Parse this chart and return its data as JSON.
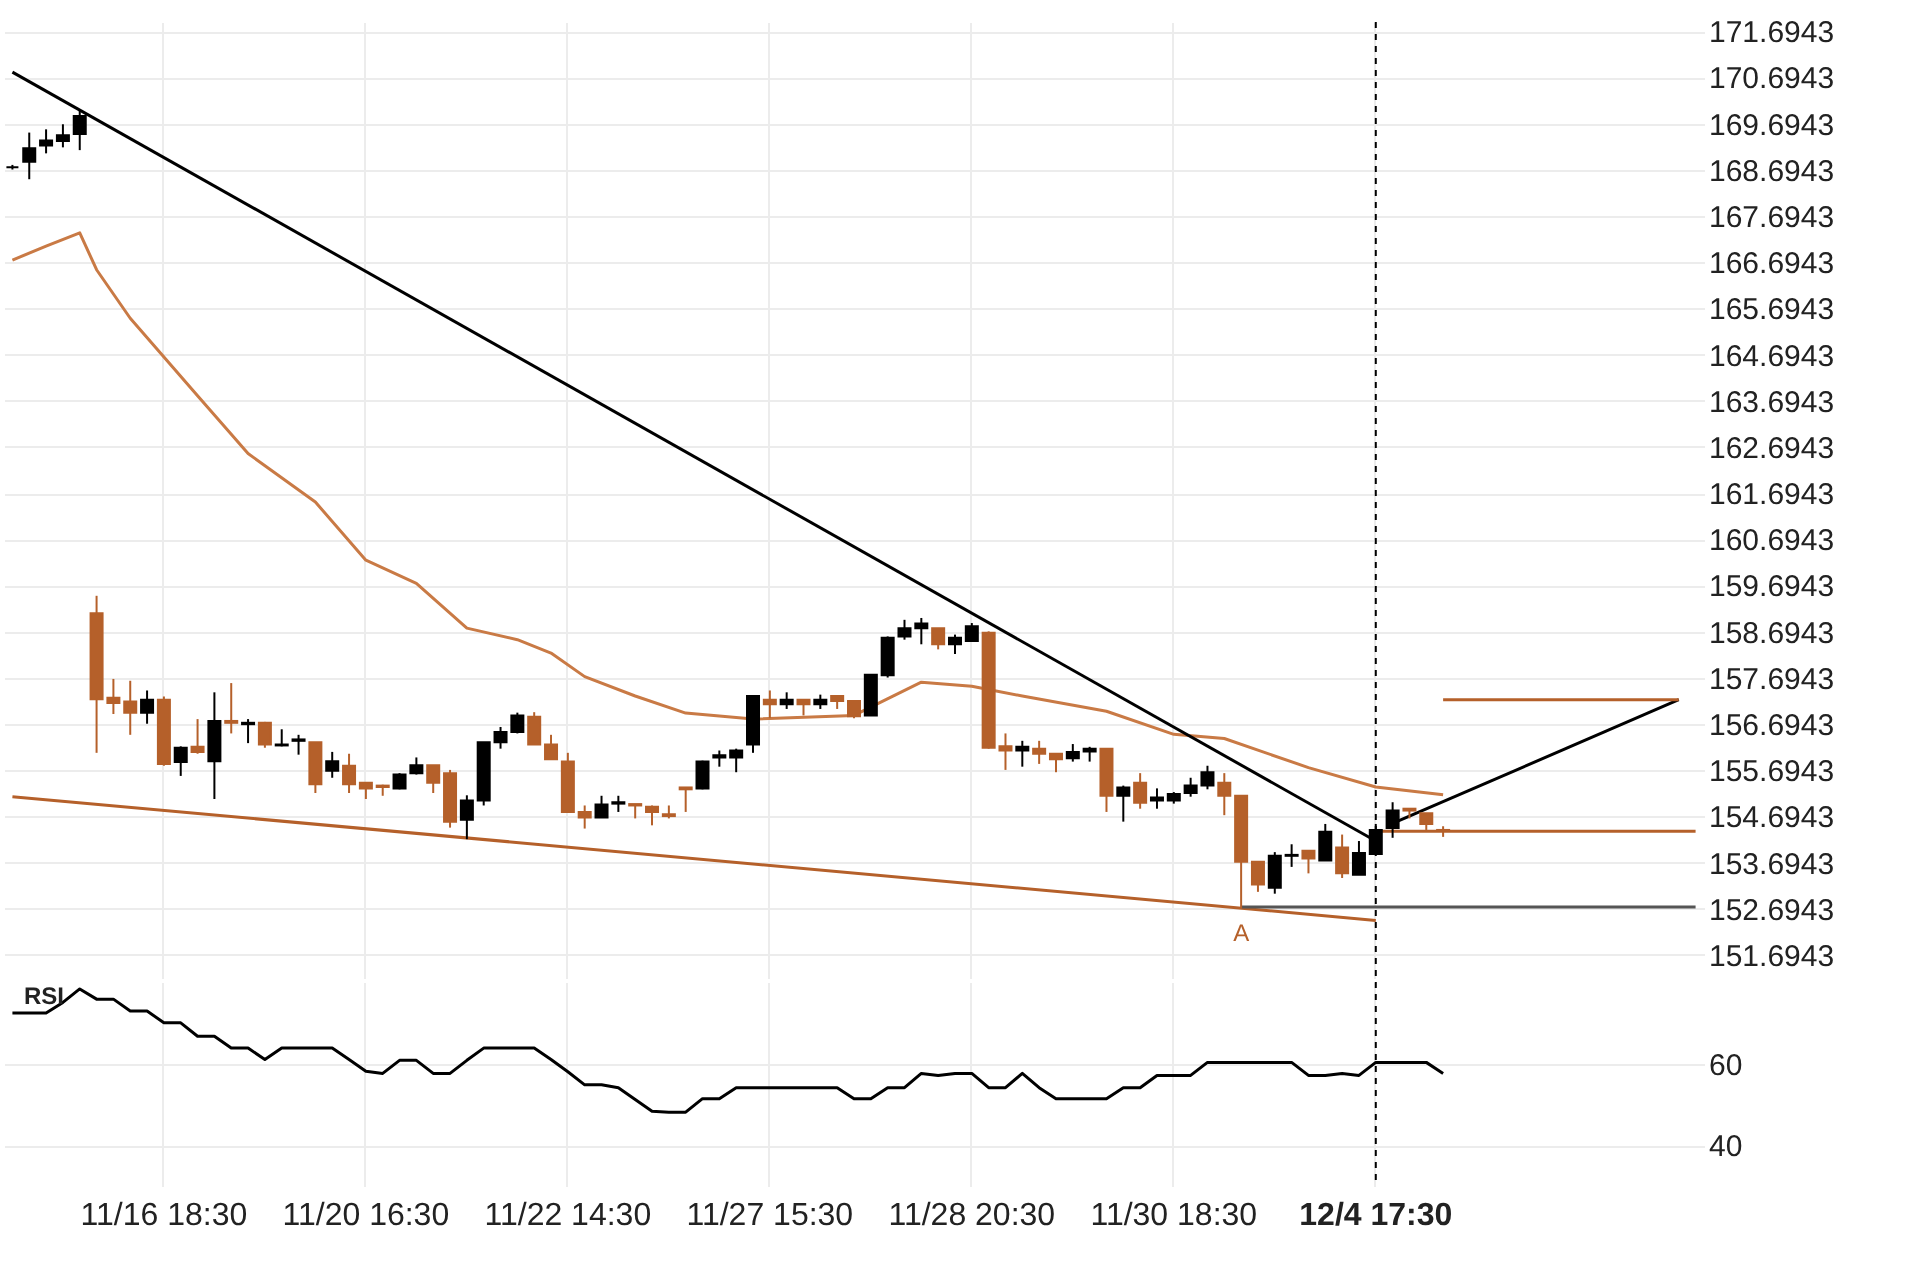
{
  "chart_data": [
    {
      "type": "candlestick",
      "categories": [
        null,
        null,
        null,
        null,
        null,
        null,
        null,
        null,
        null,
        "11/16 18:30",
        null,
        null,
        null,
        null,
        null,
        null,
        null,
        null,
        null,
        null,
        null,
        "11/20 16:30",
        null,
        null,
        null,
        null,
        null,
        null,
        null,
        null,
        null,
        null,
        null,
        "11/22 14:30",
        null,
        null,
        null,
        null,
        null,
        null,
        null,
        null,
        null,
        null,
        null,
        "11/27 15:30",
        null,
        null,
        null,
        null,
        null,
        null,
        null,
        null,
        null,
        null,
        null,
        "11/28 20:30",
        null,
        null,
        null,
        null,
        null,
        null,
        null,
        null,
        null,
        null,
        null,
        "11/30 18:30",
        null,
        null,
        null,
        null,
        null,
        null,
        null,
        null,
        null,
        null,
        null,
        "12/4 17:30",
        null,
        null,
        null,
        null,
        null,
        null,
        null,
        null,
        null,
        null,
        null,
        null,
        null,
        null,
        null,
        null,
        null,
        null,
        null
      ],
      "ohlc": [
        [
          168.75,
          168.8,
          168.7,
          168.75
        ],
        [
          168.87,
          169.5,
          168.49,
          169.16
        ],
        [
          169.22,
          169.57,
          169.05,
          169.33
        ],
        [
          169.32,
          169.68,
          169.18,
          169.44
        ],
        [
          169.47,
          169.99,
          169.12,
          169.86
        ],
        [
          159.09,
          159.47,
          156.07,
          157.23
        ],
        [
          157.26,
          157.67,
          156.91,
          157.15
        ],
        [
          157.18,
          157.63,
          156.46,
          156.94
        ],
        [
          156.94,
          157.42,
          156.7,
          157.22
        ],
        [
          157.22,
          157.29,
          155.79,
          155.83
        ],
        [
          155.87,
          156.21,
          155.57,
          156.18
        ],
        [
          156.2,
          156.8,
          156.05,
          156.09
        ],
        [
          155.89,
          157.38,
          155.07,
          156.76
        ],
        [
          156.76,
          157.58,
          156.49,
          156.72
        ],
        [
          156.69,
          156.8,
          156.28,
          156.72
        ],
        [
          156.72,
          156.74,
          156.18,
          156.25
        ],
        [
          156.23,
          156.58,
          156.21,
          156.25
        ],
        [
          156.33,
          156.46,
          156.03,
          156.36
        ],
        [
          156.3,
          156.3,
          155.2,
          155.39
        ],
        [
          155.68,
          156.09,
          155.53,
          155.89
        ],
        [
          155.79,
          156.05,
          155.2,
          155.39
        ],
        [
          155.42,
          155.42,
          155.07,
          155.3
        ],
        [
          155.36,
          155.38,
          155.14,
          155.33
        ],
        [
          155.3,
          155.63,
          155.28,
          155.6
        ],
        [
          155.63,
          155.97,
          155.6,
          155.8
        ],
        [
          155.8,
          155.8,
          155.2,
          155.42
        ],
        [
          155.63,
          155.7,
          154.45,
          154.58
        ],
        [
          154.62,
          155.15,
          154.2,
          155.04
        ],
        [
          155.04,
          156.3,
          154.93,
          156.3
        ],
        [
          156.3,
          156.63,
          156.16,
          156.52
        ],
        [
          156.52,
          156.94,
          156.49,
          156.88
        ],
        [
          156.85,
          156.95,
          156.25,
          156.25
        ],
        [
          156.25,
          156.46,
          155.93,
          155.93
        ],
        [
          155.88,
          156.07,
          154.79,
          154.79
        ],
        [
          154.79,
          154.93,
          154.43,
          154.67
        ],
        [
          154.67,
          155.14,
          154.67,
          154.95
        ],
        [
          154.97,
          155.14,
          154.79,
          155.0
        ],
        [
          154.96,
          154.96,
          154.65,
          154.93
        ],
        [
          154.9,
          154.93,
          154.5,
          154.79
        ],
        [
          154.74,
          154.93,
          154.65,
          154.7
        ],
        [
          155.32,
          155.32,
          154.79,
          155.28
        ],
        [
          155.3,
          155.9,
          155.28,
          155.88
        ],
        [
          155.97,
          156.12,
          155.77,
          156.02
        ],
        [
          155.97,
          156.16,
          155.65,
          156.12
        ],
        [
          156.25,
          157.3,
          156.07,
          157.3
        ],
        [
          157.22,
          157.42,
          156.82,
          157.12
        ],
        [
          157.12,
          157.38,
          157.02,
          157.22
        ],
        [
          157.22,
          157.22,
          156.88,
          157.12
        ],
        [
          157.12,
          157.33,
          157.02,
          157.22
        ],
        [
          157.3,
          157.3,
          157.02,
          157.19
        ],
        [
          157.19,
          157.19,
          156.82,
          156.86
        ],
        [
          156.88,
          157.76,
          156.88,
          157.76
        ],
        [
          157.75,
          158.59,
          157.7,
          158.56
        ],
        [
          158.59,
          158.95,
          158.52,
          158.77
        ],
        [
          158.77,
          158.99,
          158.42,
          158.87
        ],
        [
          158.77,
          158.77,
          158.31,
          158.42
        ],
        [
          158.42,
          158.63,
          158.21,
          158.56
        ],
        [
          158.49,
          158.88,
          158.49,
          158.81
        ],
        [
          158.67,
          158.7,
          156.16,
          156.18
        ],
        [
          156.21,
          156.49,
          155.7,
          156.12
        ],
        [
          156.12,
          156.33,
          155.77,
          156.2
        ],
        [
          156.16,
          156.33,
          155.83,
          156.05
        ],
        [
          156.05,
          156.05,
          155.65,
          155.93
        ],
        [
          155.95,
          156.26,
          155.88,
          156.09
        ],
        [
          156.1,
          156.2,
          155.88,
          156.16
        ],
        [
          156.16,
          156.16,
          154.79,
          155.14
        ],
        [
          155.14,
          155.36,
          154.58,
          155.32
        ],
        [
          155.42,
          155.63,
          154.86,
          154.99
        ],
        [
          155.04,
          155.3,
          154.86,
          155.1
        ],
        [
          155.04,
          155.22,
          154.97,
          155.18
        ],
        [
          155.2,
          155.53,
          155.12,
          155.36
        ],
        [
          155.36,
          155.79,
          155.28,
          155.65
        ],
        [
          155.42,
          155.63,
          154.72,
          155.14
        ],
        [
          155.14,
          155.14,
          152.69,
          153.71
        ],
        [
          153.71,
          153.71,
          153.06,
          153.22
        ],
        [
          153.15,
          153.92,
          153.02,
          153.84
        ],
        [
          153.84,
          154.09,
          153.6,
          153.86
        ],
        [
          153.95,
          153.95,
          153.46,
          153.78
        ],
        [
          153.74,
          154.53,
          153.74,
          154.36
        ],
        [
          154.02,
          154.3,
          153.36,
          153.46
        ],
        [
          153.43,
          154.16,
          153.43,
          153.9
        ],
        [
          153.88,
          154.53,
          153.88,
          154.4
        ],
        [
          154.44,
          155.0,
          154.23,
          154.82
        ],
        [
          154.86,
          154.86,
          154.65,
          154.82
        ],
        [
          154.76,
          154.76,
          154.4,
          154.53
        ],
        [
          154.4,
          154.48,
          154.25,
          154.38
        ],
        null,
        null,
        null,
        null,
        null,
        null,
        null,
        null,
        null,
        null,
        null,
        null,
        null,
        null,
        null
      ],
      "colors": [
        "#000000",
        "#000000",
        "#000000",
        "#000000",
        "#000000",
        "#b5602a",
        "#b5602a",
        "#b5602a",
        "#000000",
        "#b5602a",
        "#000000",
        "#b5602a",
        "#000000",
        "#b5602a",
        "#000000",
        "#b5602a",
        "#000000",
        "#000000",
        "#b5602a",
        "#000000",
        "#b5602a",
        "#b5602a",
        "#b5602a",
        "#000000",
        "#000000",
        "#b5602a",
        "#b5602a",
        "#000000",
        "#000000",
        "#000000",
        "#000000",
        "#b5602a",
        "#b5602a",
        "#b5602a",
        "#b5602a",
        "#000000",
        "#000000",
        "#b5602a",
        "#b5602a",
        "#b5602a",
        "#b5602a",
        "#000000",
        "#000000",
        "#000000",
        "#000000",
        "#b5602a",
        "#000000",
        "#b5602a",
        "#000000",
        "#b5602a",
        "#b5602a",
        "#000000",
        "#000000",
        "#000000",
        "#000000",
        "#b5602a",
        "#000000",
        "#000000",
        "#b5602a",
        "#b5602a",
        "#000000",
        "#b5602a",
        "#b5602a",
        "#000000",
        "#000000",
        "#b5602a",
        "#000000",
        "#b5602a",
        "#000000",
        "#000000",
        "#000000",
        "#000000",
        "#b5602a",
        "#b5602a",
        "#b5602a",
        "#000000",
        "#000000",
        "#b5602a",
        "#000000",
        "#b5602a",
        "#000000",
        "#000000",
        "#000000",
        "#b5602a",
        "#b5602a",
        "#b5602a",
        null,
        null,
        null,
        null,
        null,
        null,
        null,
        null,
        null,
        null,
        null,
        null,
        null,
        null,
        null
      ],
      "series": [
        {
          "type": "line",
          "color": "#c97a45",
          "values": [
            166.74,
            null,
            167.04,
            null,
            167.33,
            166.53,
            null,
            165.48,
            null,
            null,
            null,
            163.8,
            null,
            null,
            162.55,
            null,
            null,
            null,
            161.5,
            null,
            null,
            160.24,
            null,
            null,
            159.74,
            null,
            null,
            158.77,
            null,
            null,
            158.52,
            null,
            158.23,
            null,
            157.72,
            null,
            null,
            157.3,
            null,
            null,
            156.93,
            null,
            null,
            null,
            156.8,
            null,
            null,
            null,
            null,
            null,
            156.88,
            null,
            null,
            null,
            157.6,
            null,
            null,
            157.51,
            null,
            null,
            157.3,
            null,
            null,
            null,
            null,
            156.97,
            null,
            null,
            null,
            156.47,
            null,
            null,
            156.38,
            null,
            null,
            null,
            null,
            155.75,
            null,
            null,
            null,
            155.33,
            null,
            null,
            null,
            155.16,
            null,
            null,
            null,
            null,
            null,
            null,
            null,
            null,
            null,
            null,
            null,
            null,
            null,
            null,
            null
          ]
        },
        {
          "type": "line",
          "color": "#000000",
          "values": [
            170.81,
            null,
            null,
            null,
            null,
            null,
            null,
            null,
            null,
            null,
            null,
            null,
            null,
            null,
            null,
            null,
            null,
            null,
            null,
            null,
            null,
            null,
            null,
            null,
            null,
            null,
            null,
            null,
            null,
            null,
            null,
            null,
            null,
            null,
            null,
            null,
            null,
            null,
            null,
            null,
            null,
            null,
            null,
            null,
            null,
            null,
            null,
            null,
            null,
            null,
            null,
            null,
            null,
            null,
            null,
            null,
            null,
            null,
            null,
            null,
            null,
            null,
            null,
            null,
            null,
            null,
            null,
            null,
            null,
            null,
            null,
            null,
            null,
            null,
            null,
            null,
            null,
            null,
            null,
            null,
            null,
            154.16,
            null,
            null,
            null,
            null,
            null,
            null,
            null,
            null,
            null,
            null,
            null,
            null,
            null,
            null,
            null,
            null,
            null,
            null,
            null
          ]
        },
        {
          "type": "line",
          "color": "#b5602a",
          "values": [
            155.12,
            null,
            null,
            null,
            null,
            null,
            null,
            null,
            null,
            null,
            null,
            null,
            null,
            null,
            null,
            null,
            null,
            null,
            null,
            null,
            null,
            null,
            null,
            null,
            null,
            null,
            null,
            null,
            null,
            null,
            null,
            null,
            null,
            null,
            null,
            null,
            null,
            null,
            null,
            null,
            null,
            null,
            null,
            null,
            null,
            null,
            null,
            null,
            null,
            null,
            null,
            null,
            null,
            null,
            null,
            null,
            null,
            null,
            null,
            null,
            null,
            null,
            null,
            null,
            null,
            null,
            null,
            null,
            null,
            null,
            null,
            null,
            null,
            null,
            null,
            null,
            null,
            null,
            null,
            null,
            null,
            152.44,
            null,
            null,
            null,
            null,
            null,
            null,
            null,
            null,
            null,
            null,
            null,
            null,
            null,
            null,
            null,
            null,
            null,
            null,
            null
          ]
        },
        {
          "type": "line",
          "color": "#555555",
          "values": [
            null,
            null,
            null,
            null,
            null,
            null,
            null,
            null,
            null,
            null,
            null,
            null,
            null,
            null,
            null,
            null,
            null,
            null,
            null,
            null,
            null,
            null,
            null,
            null,
            null,
            null,
            null,
            null,
            null,
            null,
            null,
            null,
            null,
            null,
            null,
            null,
            null,
            null,
            null,
            null,
            null,
            null,
            null,
            null,
            null,
            null,
            null,
            null,
            null,
            null,
            null,
            null,
            null,
            null,
            null,
            null,
            null,
            null,
            null,
            null,
            null,
            null,
            null,
            null,
            null,
            null,
            null,
            null,
            null,
            null,
            null,
            null,
            null,
            152.73,
            null,
            null,
            null,
            null,
            null,
            null,
            null,
            null,
            null,
            null,
            null,
            null,
            null,
            null,
            null,
            null,
            null,
            null,
            null,
            null,
            null,
            null,
            null,
            null,
            null,
            null,
            152.73
          ]
        },
        {
          "type": "line",
          "color": "#b5602a",
          "values": [
            null,
            null,
            null,
            null,
            null,
            null,
            null,
            null,
            null,
            null,
            null,
            null,
            null,
            null,
            null,
            null,
            null,
            null,
            null,
            null,
            null,
            null,
            null,
            null,
            null,
            null,
            null,
            null,
            null,
            null,
            null,
            null,
            null,
            null,
            null,
            null,
            null,
            null,
            null,
            null,
            null,
            null,
            null,
            null,
            null,
            null,
            null,
            null,
            null,
            null,
            null,
            null,
            null,
            null,
            null,
            null,
            null,
            null,
            null,
            null,
            null,
            null,
            null,
            null,
            null,
            null,
            null,
            null,
            null,
            null,
            null,
            null,
            null,
            null,
            null,
            null,
            null,
            null,
            null,
            null,
            null,
            154.37,
            null,
            null,
            null,
            null,
            null,
            null,
            null,
            null,
            null,
            null,
            null,
            null,
            null,
            null,
            null,
            null,
            null,
            null,
            154.37
          ]
        },
        {
          "type": "line",
          "color": "#000000",
          "values": [
            null,
            null,
            null,
            null,
            null,
            null,
            null,
            null,
            null,
            null,
            null,
            null,
            null,
            null,
            null,
            null,
            null,
            null,
            null,
            null,
            null,
            null,
            null,
            null,
            null,
            null,
            null,
            null,
            null,
            null,
            null,
            null,
            null,
            null,
            null,
            null,
            null,
            null,
            null,
            null,
            null,
            null,
            null,
            null,
            null,
            null,
            null,
            null,
            null,
            null,
            null,
            null,
            null,
            null,
            null,
            null,
            null,
            null,
            null,
            null,
            null,
            null,
            null,
            null,
            null,
            null,
            null,
            null,
            null,
            null,
            null,
            null,
            null,
            null,
            null,
            null,
            null,
            null,
            null,
            null,
            null,
            null,
            154.54,
            null,
            null,
            null,
            null,
            null,
            null,
            null,
            null,
            null,
            null,
            null,
            null,
            null,
            null,
            null,
            null,
            157.22,
            null
          ]
        },
        {
          "type": "line",
          "color": "#b5602a",
          "values": [
            null,
            null,
            null,
            null,
            null,
            null,
            null,
            null,
            null,
            null,
            null,
            null,
            null,
            null,
            null,
            null,
            null,
            null,
            null,
            null,
            null,
            null,
            null,
            null,
            null,
            null,
            null,
            null,
            null,
            null,
            null,
            null,
            null,
            null,
            null,
            null,
            null,
            null,
            null,
            null,
            null,
            null,
            null,
            null,
            null,
            null,
            null,
            null,
            null,
            null,
            null,
            null,
            null,
            null,
            null,
            null,
            null,
            null,
            null,
            null,
            null,
            null,
            null,
            null,
            null,
            null,
            null,
            null,
            null,
            null,
            null,
            null,
            null,
            null,
            null,
            null,
            null,
            null,
            null,
            null,
            null,
            null,
            null,
            null,
            null,
            157.22,
            null,
            null,
            null,
            null,
            null,
            null,
            null,
            null,
            null,
            null,
            null,
            null,
            null,
            157.22,
            null
          ]
        }
      ],
      "ylim": [
        151.1943,
        171.8943
      ],
      "yticks": [
        151.6943,
        152.6943,
        153.6943,
        154.6943,
        155.6943,
        156.6943,
        157.6943,
        158.6943,
        159.6943,
        160.6943,
        161.6943,
        162.6943,
        163.6943,
        164.6943,
        165.6943,
        166.6943,
        167.6943,
        168.6943,
        169.6943,
        170.6943,
        171.6943
      ],
      "grid": true,
      "tick_labels": "y",
      "ref_lines": [
        {
          "axis": "x",
          "value": "12/4 17:30",
          "color": "#000000",
          "line_style": "dashed"
        }
      ],
      "annotations": [
        "A"
      ]
    },
    {
      "type": "line",
      "categories": [
        null,
        null,
        null,
        null,
        null,
        null,
        null,
        null,
        null,
        "11/16 18:30",
        null,
        null,
        null,
        null,
        null,
        null,
        null,
        null,
        null,
        null,
        null,
        "11/20 16:30",
        null,
        null,
        null,
        null,
        null,
        null,
        null,
        null,
        null,
        null,
        null,
        "11/22 14:30",
        null,
        null,
        null,
        null,
        null,
        null,
        null,
        null,
        null,
        null,
        null,
        "11/27 15:30",
        null,
        null,
        null,
        null,
        null,
        null,
        null,
        null,
        null,
        null,
        null,
        "11/28 20:30",
        null,
        null,
        null,
        null,
        null,
        null,
        null,
        null,
        null,
        null,
        null,
        "11/30 18:30",
        null,
        null,
        null,
        null,
        null,
        null,
        null,
        null,
        null,
        null,
        null,
        "12/4 17:30",
        null,
        null,
        null,
        null,
        null,
        null,
        null,
        null,
        null,
        null,
        null,
        null,
        null,
        null,
        null,
        null,
        null,
        null,
        null
      ],
      "series": [
        {
          "color": "#000000",
          "values": [
            72.4,
            72.4,
            72.4,
            75,
            78.3,
            75.8,
            75.8,
            72.9,
            72.9,
            70,
            70,
            66.7,
            66.7,
            63.8,
            63.8,
            61,
            63.8,
            63.8,
            63.8,
            63.8,
            61,
            58.1,
            57.6,
            60.8,
            60.8,
            57.6,
            57.6,
            60.8,
            63.8,
            63.8,
            63.8,
            63.8,
            61,
            58,
            54.8,
            54.8,
            54.1,
            51.2,
            48.3,
            48.1,
            48.1,
            51.4,
            51.4,
            54.1,
            54.1,
            54.1,
            54.1,
            54.1,
            54.1,
            54.1,
            51.4,
            51.4,
            54.1,
            54.1,
            57.6,
            57.1,
            57.6,
            57.6,
            54.1,
            54.1,
            57.6,
            54.1,
            51.4,
            51.4,
            51.4,
            51.4,
            54.1,
            54.1,
            57.1,
            57.1,
            57.1,
            60.3,
            60.3,
            60.3,
            60.3,
            60.3,
            60.3,
            57.1,
            57.1,
            57.6,
            57.1,
            60.3,
            60.3,
            60.3,
            60.3,
            57.6,
            null,
            null,
            null,
            null,
            null,
            null,
            null,
            null,
            null,
            null,
            null,
            null,
            null,
            null,
            null
          ]
        }
      ],
      "ylim": [
        30,
        80
      ],
      "yticks": [
        40,
        60
      ],
      "grid": true,
      "ref_lines": [
        {
          "axis": "x",
          "value": "12/4 17:30",
          "color": "#000000",
          "line_style": "dashed"
        }
      ],
      "annotations": [
        "RSI"
      ]
    }
  ]
}
